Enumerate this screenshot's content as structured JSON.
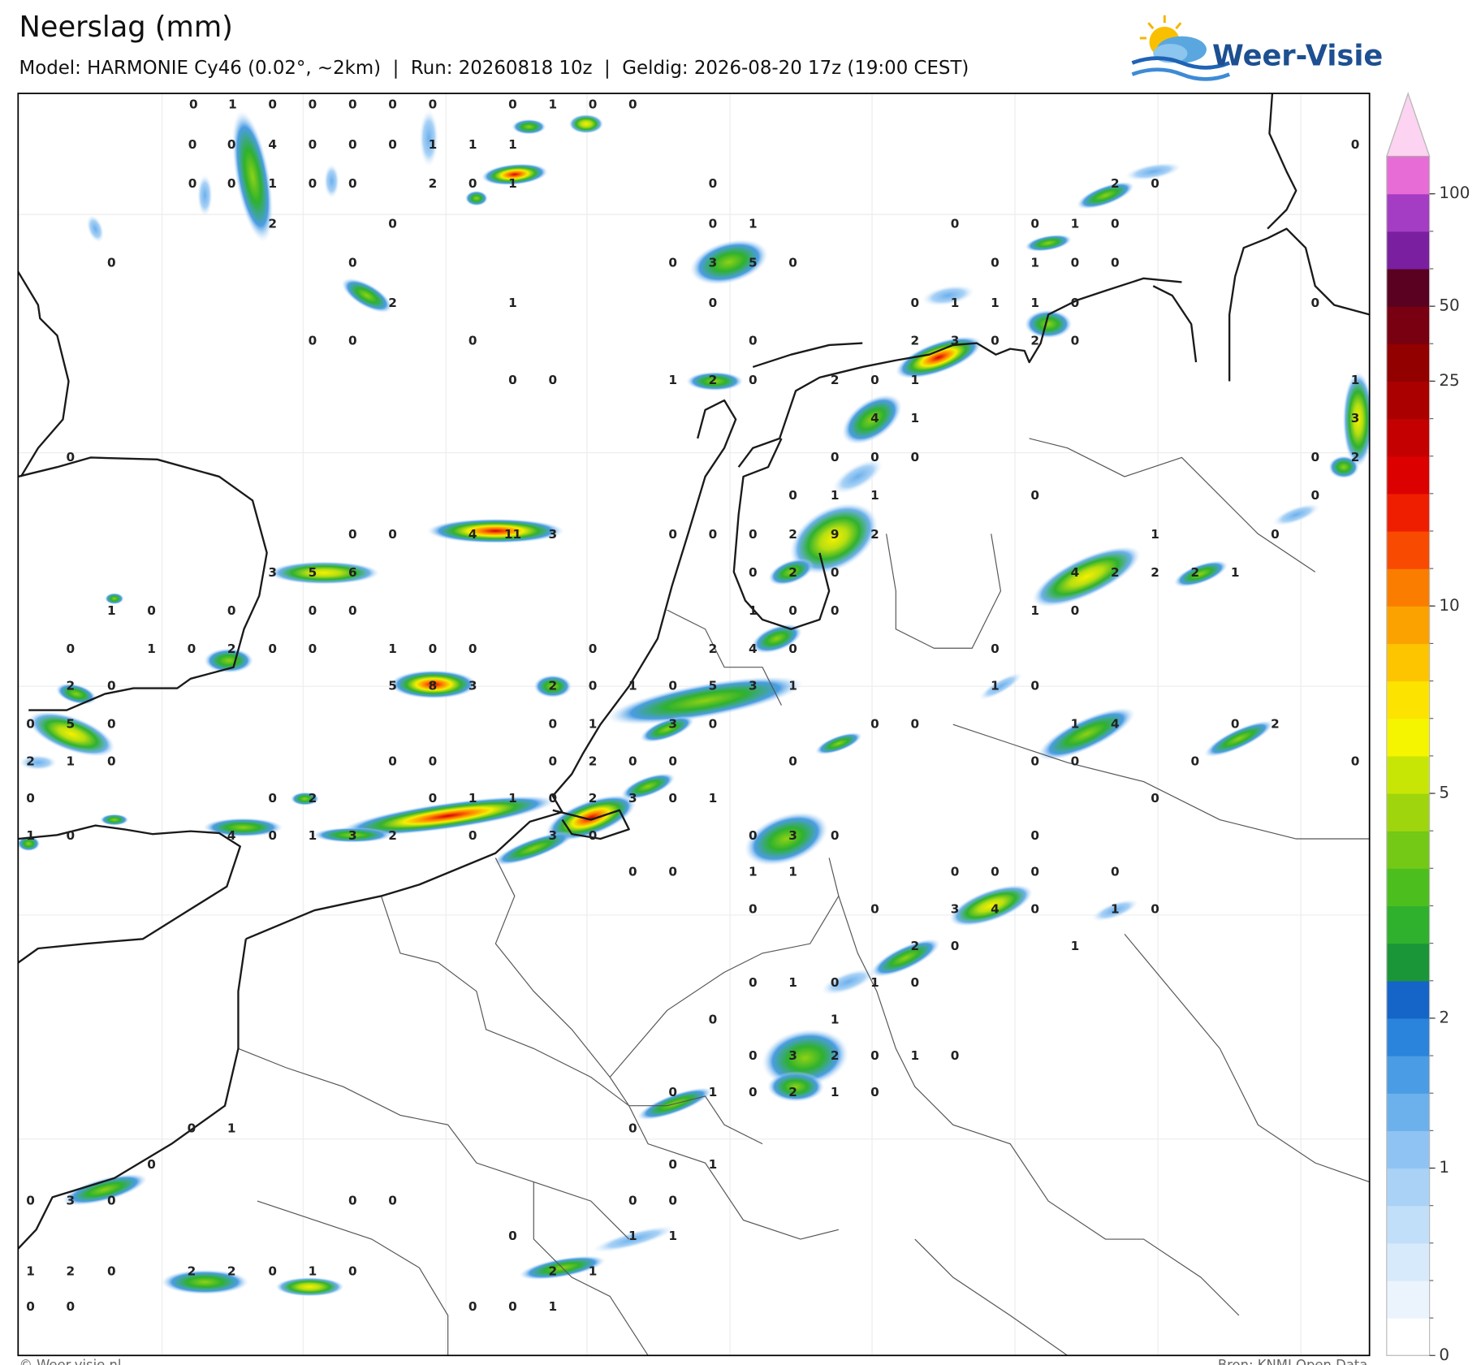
{
  "header": {
    "title": "Neerslag (mm)",
    "subtitle": "Model: HARMONIE Cy46 (0.02°, ~2km)  |  Run: 20260818 10z  |  Geldig: 2026-08-20 17z (19:00 CEST)"
  },
  "logo": {
    "text": "Weer-Visie"
  },
  "colorbar": {
    "ticks": [
      0,
      1,
      2,
      5,
      10,
      25,
      50,
      100
    ],
    "colors": [
      "#ffffff",
      "#ebf4fd",
      "#d7eafb",
      "#c2dff9",
      "#a9d2f6",
      "#8fc3f3",
      "#6cb0ec",
      "#4a9ce4",
      "#2a84db",
      "#1565c8",
      "#1a9638",
      "#2fb12e",
      "#4cbf1f",
      "#74c816",
      "#9fd50d",
      "#c8e605",
      "#f5f500",
      "#fde300",
      "#fdc400",
      "#fca200",
      "#fa7d00",
      "#f84a00",
      "#f01e00",
      "#dc0000",
      "#c40000",
      "#ab0000",
      "#920000",
      "#780010",
      "#5a0020",
      "#7a1fa0",
      "#a43cc4",
      "#e86cd6"
    ],
    "extend_color": "#fcd3f0"
  },
  "map": {
    "labels": [
      [
        0,
        1,
        0,
        0,
        0,
        0,
        0,
        0,
        1,
        0,
        0
      ],
      [
        0,
        0,
        4,
        0,
        0,
        0,
        1,
        1,
        1,
        0
      ],
      [
        0,
        0,
        1,
        0,
        0,
        2,
        0,
        1,
        0,
        2,
        0
      ],
      [
        2,
        0,
        0,
        1,
        0,
        0,
        1,
        0
      ],
      [
        0,
        0,
        0,
        3,
        5,
        0,
        0,
        1,
        0,
        0
      ],
      [
        2,
        1,
        0,
        0,
        1,
        1,
        1,
        0,
        0
      ],
      [
        0,
        0,
        0,
        0,
        2,
        3,
        0,
        2,
        0
      ],
      [
        0,
        0,
        1,
        2,
        0,
        2,
        0,
        1,
        1
      ],
      [
        4,
        1,
        3
      ],
      [
        0,
        0,
        0,
        0,
        0,
        2
      ],
      [
        0,
        1,
        1,
        0,
        0
      ],
      [
        0,
        0,
        4,
        11,
        3,
        0,
        0,
        0,
        2,
        9,
        2,
        1,
        0
      ],
      [
        3,
        5,
        6,
        0,
        2,
        0,
        4,
        2,
        2,
        2,
        1
      ],
      [
        1,
        0,
        0,
        0,
        0,
        1,
        0,
        0,
        1,
        0
      ],
      [
        0,
        1,
        0,
        2,
        0,
        0,
        1,
        0,
        0,
        0,
        2,
        4,
        0,
        0
      ],
      [
        2,
        0,
        5,
        8,
        3,
        2,
        0,
        1,
        0,
        5,
        3,
        1,
        1,
        0
      ],
      [
        0,
        5,
        0,
        0,
        1,
        3,
        0,
        0,
        0,
        1,
        4,
        0,
        2
      ],
      [
        2,
        1,
        0,
        0,
        0,
        0,
        2,
        0,
        0,
        0,
        0,
        0,
        0,
        0
      ],
      [
        0,
        0,
        2,
        0,
        1,
        1,
        0,
        2,
        3,
        0,
        1,
        0
      ],
      [
        1,
        0,
        4,
        0,
        1,
        3,
        2,
        0,
        3,
        0,
        0,
        3,
        0,
        0
      ],
      [
        0,
        0,
        1,
        1,
        0,
        0,
        0,
        0
      ],
      [
        0,
        0,
        3,
        4,
        0,
        1,
        0
      ],
      [
        2,
        0,
        1
      ],
      [
        0,
        1,
        0,
        1,
        0
      ],
      [
        0,
        1
      ],
      [
        0,
        3,
        2,
        0,
        1,
        0
      ],
      [
        0,
        1,
        0,
        2,
        1,
        0
      ],
      [
        0,
        1,
        0
      ],
      [
        0,
        0,
        1
      ],
      [
        0,
        3,
        0,
        0,
        0,
        0,
        0
      ],
      [
        0,
        1,
        1
      ],
      [
        1,
        2,
        0,
        2,
        2,
        0,
        1,
        0,
        2,
        1
      ],
      [
        0,
        0,
        0,
        0,
        1
      ]
    ]
  },
  "footer": {
    "left": "© Weer-visie.nl",
    "right": "Bron: KNMI Open Data"
  }
}
